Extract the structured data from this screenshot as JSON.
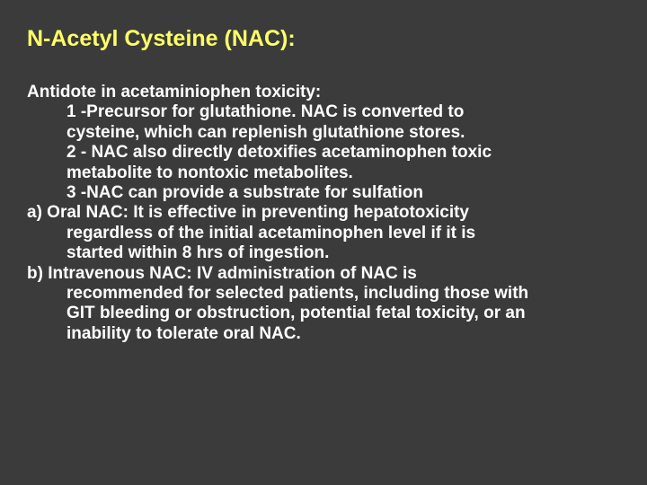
{
  "slide": {
    "title": "N-Acetyl Cysteine (NAC):",
    "lines": {
      "l0": "Antidote in acetaminiophen toxicity:",
      "l1": "1 -Precursor for glutathione. NAC is converted to",
      "l2": "cysteine, which can replenish glutathione stores.",
      "l3": "2 - NAC also directly detoxifies acetaminophen toxic",
      "l4": "metabolite to nontoxic metabolites.",
      "l5": "3 -NAC can provide a substrate for sulfation",
      "l6": "a) Oral NAC: It is effective in preventing hepatotoxicity",
      "l7": "regardless of the initial acetaminophen level if it is",
      "l8": "started within 8 hrs of ingestion.",
      "l9": "b) Intravenous NAC: IV administration of NAC is",
      "l10": "recommended for selected patients, including those with",
      "l11": "GIT bleeding or obstruction, potential fetal toxicity, or an",
      "l12": "inability to tolerate oral NAC."
    },
    "colors": {
      "background": "#3b3b3b",
      "title": "#ffff66",
      "body": "#ffffff"
    },
    "typography": {
      "title_fontsize": 25,
      "body_fontsize": 19,
      "font_weight": "bold",
      "font_family": "Arial"
    }
  }
}
